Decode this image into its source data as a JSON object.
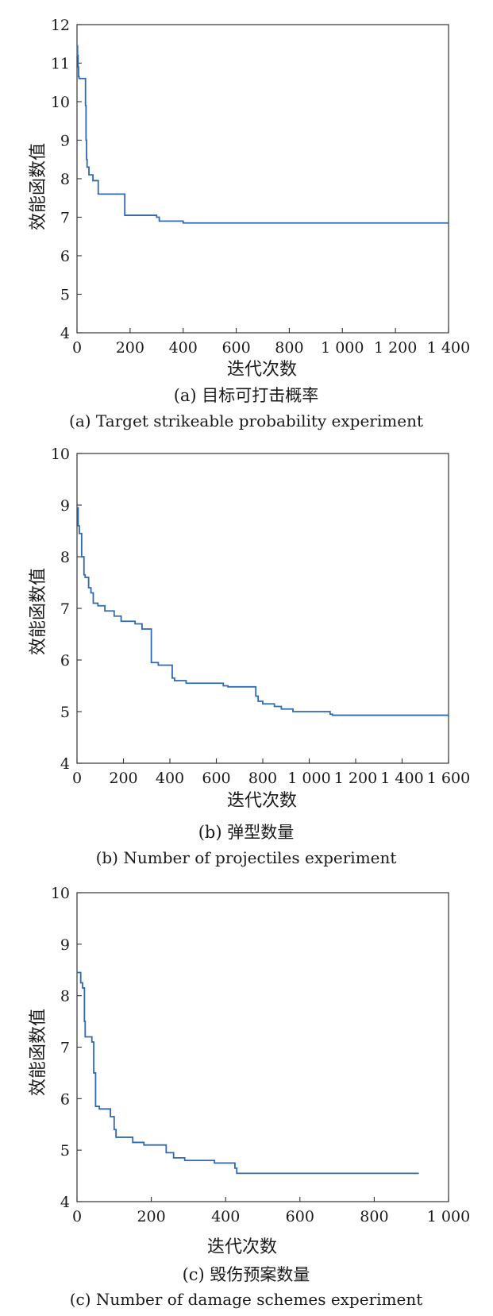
{
  "chart_data": [
    {
      "type": "line",
      "step": true,
      "ylabel": "效能函数值",
      "xlabel": "迭代次数",
      "caption_cn": "(a) 目标可打击概率",
      "caption_en": "(a) Target strikeable probability experiment",
      "xlim": [
        0,
        1400
      ],
      "ylim": [
        4,
        12
      ],
      "xticks": [
        0,
        200,
        400,
        600,
        800,
        1000,
        1200,
        1400
      ],
      "xtick_labels": [
        "0",
        "200",
        "400",
        "600",
        "800",
        "1 000",
        "1 200",
        "1 400"
      ],
      "yticks": [
        4,
        5,
        6,
        7,
        8,
        9,
        10,
        11,
        12
      ],
      "ytick_labels": [
        "4",
        "5",
        "6",
        "7",
        "8",
        "9",
        "10",
        "11",
        "12"
      ],
      "color": "#2f68b3",
      "x": [
        0,
        2,
        4,
        6,
        8,
        10,
        30,
        32,
        34,
        36,
        38,
        40,
        45,
        50,
        60,
        80,
        170,
        180,
        300,
        310,
        395,
        400,
        1400
      ],
      "y": [
        11.45,
        11.2,
        10.9,
        10.65,
        10.6,
        10.6,
        10.6,
        9.9,
        9.0,
        8.5,
        8.3,
        8.3,
        8.1,
        8.1,
        7.95,
        7.6,
        7.6,
        7.05,
        7.0,
        6.9,
        6.9,
        6.85,
        6.85
      ]
    },
    {
      "type": "line",
      "step": true,
      "ylabel": "效能函数值",
      "xlabel": "迭代次数",
      "caption_cn": "(b) 弹型数量",
      "caption_en": "(b) Number of projectiles experiment",
      "xlim": [
        0,
        1600
      ],
      "ylim": [
        4,
        10
      ],
      "xticks": [
        0,
        200,
        400,
        600,
        800,
        1000,
        1200,
        1400,
        1600
      ],
      "xtick_labels": [
        "0",
        "200",
        "400",
        "600",
        "800",
        "1 000",
        "1 200",
        "1 400",
        "1 600"
      ],
      "yticks": [
        4,
        5,
        6,
        7,
        8,
        9,
        10
      ],
      "ytick_labels": [
        "4",
        "5",
        "6",
        "7",
        "8",
        "9",
        "10"
      ],
      "color": "#2f68b3",
      "x": [
        0,
        5,
        10,
        20,
        30,
        35,
        50,
        60,
        70,
        90,
        120,
        160,
        190,
        250,
        280,
        315,
        320,
        350,
        410,
        420,
        470,
        630,
        650,
        770,
        780,
        800,
        850,
        880,
        930,
        1090,
        1100,
        1600
      ],
      "y": [
        8.95,
        8.6,
        8.45,
        8.0,
        7.65,
        7.6,
        7.4,
        7.3,
        7.1,
        7.05,
        6.95,
        6.85,
        6.75,
        6.7,
        6.6,
        6.6,
        5.95,
        5.9,
        5.65,
        5.6,
        5.55,
        5.5,
        5.48,
        5.3,
        5.2,
        5.15,
        5.1,
        5.05,
        5.0,
        4.95,
        4.93,
        4.93
      ]
    },
    {
      "type": "line",
      "step": true,
      "ylabel": "效能函数值",
      "xlabel": "迭代次数",
      "caption_cn": "(c) 毁伤预案数量",
      "caption_en": "(c) Number of damage schemes experiment",
      "xlim": [
        0,
        1000
      ],
      "ylim": [
        4,
        10
      ],
      "xticks": [
        0,
        200,
        400,
        600,
        800,
        1000
      ],
      "xtick_labels": [
        "0",
        "200",
        "400",
        "600",
        "800",
        "1 000"
      ],
      "yticks": [
        4,
        5,
        6,
        7,
        8,
        9,
        10
      ],
      "ytick_labels": [
        "4",
        "5",
        "6",
        "7",
        "8",
        "9",
        "10"
      ],
      "color": "#2f68b3",
      "x": [
        0,
        10,
        15,
        20,
        22,
        25,
        40,
        45,
        50,
        55,
        60,
        90,
        100,
        105,
        150,
        180,
        240,
        260,
        290,
        370,
        425,
        430,
        920
      ],
      "y": [
        8.45,
        8.25,
        8.15,
        7.5,
        7.2,
        7.2,
        7.1,
        6.5,
        5.85,
        5.85,
        5.8,
        5.65,
        5.4,
        5.25,
        5.15,
        5.1,
        4.95,
        4.85,
        4.8,
        4.75,
        4.65,
        4.55,
        4.55
      ]
    }
  ]
}
